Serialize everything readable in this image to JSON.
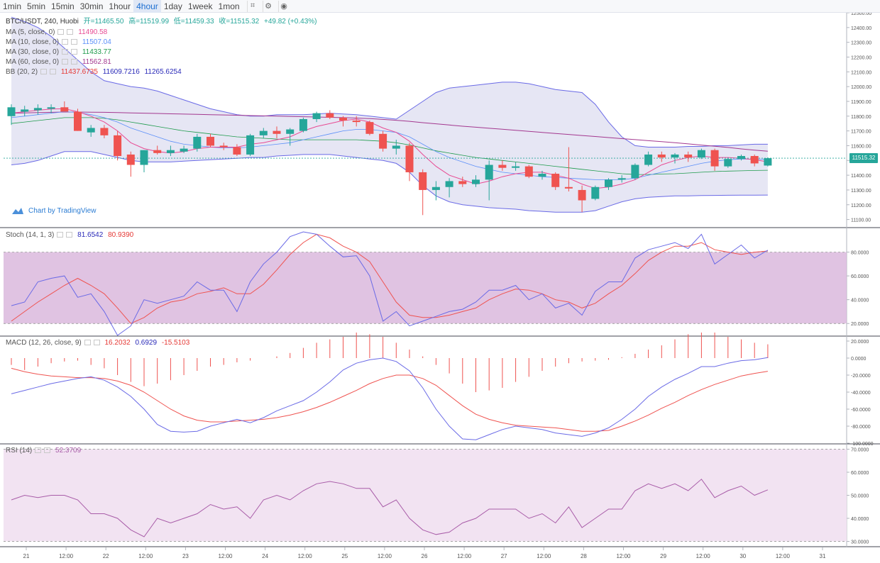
{
  "toolbar": {
    "timeframes": [
      "1min",
      "5min",
      "15min",
      "30min",
      "1hour",
      "4hour",
      "1day",
      "1week",
      "1mon"
    ],
    "active": "4hour"
  },
  "header": {
    "symbol": "BTC/USDT, 240, Huobi",
    "open_label": "开=11465.50",
    "high_label": "高=11519.99",
    "low_label": "低=11459.33",
    "close_label": "收=11515.32",
    "change_label": "+49.82 (+0.43%)"
  },
  "indicators": {
    "ma5": {
      "label": "MA (5, close, 0)",
      "value": "11490.58",
      "color": "#e84a93"
    },
    "ma10": {
      "label": "MA (10, close, 0)",
      "value": "11507.04",
      "color": "#5b8ff9"
    },
    "ma30": {
      "label": "MA (30, close, 0)",
      "value": "11433.77",
      "color": "#1e9b4c"
    },
    "ma60": {
      "label": "MA (60, close, 0)",
      "value": "11562.81",
      "color": "#a3388f"
    },
    "bb": {
      "label": "BB (20, 2)",
      "basis": "11437.6735",
      "upper": "11609.7216",
      "lower": "11265.6254"
    },
    "stoch": {
      "label": "Stoch (14, 1, 3)",
      "k": "81.6542",
      "d": "80.9390"
    },
    "macd": {
      "label": "MACD (12, 26, close, 9)",
      "hist": "16.2032",
      "macd": "0.6929",
      "signal": "-15.5103"
    },
    "rsi": {
      "label": "RSI (14)",
      "value": "52.3709"
    }
  },
  "watermark": "Chart by TradingView",
  "last_price": "11515.32",
  "colors": {
    "up": "#26a69a",
    "down": "#ef5350",
    "bb": "#6a6ae6",
    "bb_fill": "#e3e3f3",
    "stoch_k": "#6a6ae6",
    "stoch_d": "#ef5350",
    "stoch_band": "#dab8dd",
    "rsi_line": "#a85ca8",
    "rsi_band": "#f2e3f2"
  },
  "chart_data": [
    {
      "type": "candlestick",
      "title": "BTC/USDT, 240, Huobi",
      "ylim": [
        11050,
        12500
      ],
      "y_ticks": [
        11100,
        11200,
        11300,
        11400,
        11500,
        11600,
        11700,
        11800,
        11900,
        12000,
        12100,
        12200,
        12300,
        12400,
        12500
      ],
      "x_tick_labels": [
        "21",
        "12:00",
        "22",
        "12:00",
        "23",
        "12:00",
        "24",
        "12:00",
        "25",
        "12:00",
        "26",
        "12:00",
        "27",
        "12:00",
        "28",
        "12:00",
        "29",
        "12:00",
        "30",
        "12:00",
        "31"
      ],
      "ohlc": [
        [
          11800,
          11880,
          11740,
          11860
        ],
        [
          11830,
          11870,
          11800,
          11845
        ],
        [
          11840,
          11880,
          11810,
          11855
        ],
        [
          11850,
          11880,
          11820,
          11860
        ],
        [
          11860,
          11900,
          11830,
          11830
        ],
        [
          11830,
          11850,
          11700,
          11700
        ],
        [
          11690,
          11740,
          11660,
          11720
        ],
        [
          11720,
          11740,
          11650,
          11670
        ],
        [
          11670,
          11700,
          11500,
          11530
        ],
        [
          11540,
          11560,
          11390,
          11470
        ],
        [
          11470,
          11570,
          11420,
          11570
        ],
        [
          11570,
          11600,
          11540,
          11550
        ],
        [
          11550,
          11600,
          11530,
          11570
        ],
        [
          11560,
          11600,
          11550,
          11580
        ],
        [
          11580,
          11680,
          11560,
          11660
        ],
        [
          11660,
          11680,
          11590,
          11600
        ],
        [
          11600,
          11620,
          11570,
          11590
        ],
        [
          11590,
          11610,
          11530,
          11540
        ],
        [
          11540,
          11680,
          11530,
          11670
        ],
        [
          11670,
          11720,
          11650,
          11700
        ],
        [
          11700,
          11730,
          11650,
          11680
        ],
        [
          11680,
          11720,
          11600,
          11710
        ],
        [
          11700,
          11790,
          11690,
          11780
        ],
        [
          11780,
          11830,
          11760,
          11820
        ],
        [
          11820,
          11840,
          11780,
          11790
        ],
        [
          11790,
          11800,
          11730,
          11770
        ],
        [
          11770,
          11800,
          11730,
          11760
        ],
        [
          11760,
          11770,
          11670,
          11680
        ],
        [
          11680,
          11700,
          11560,
          11580
        ],
        [
          11580,
          11640,
          11540,
          11600
        ],
        [
          11600,
          11620,
          11360,
          11420
        ],
        [
          11420,
          11440,
          11130,
          11300
        ],
        [
          11300,
          11360,
          11230,
          11320
        ],
        [
          11320,
          11380,
          11250,
          11360
        ],
        [
          11360,
          11390,
          11320,
          11340
        ],
        [
          11340,
          11400,
          11320,
          11370
        ],
        [
          11370,
          11500,
          11230,
          11470
        ],
        [
          11470,
          11500,
          11430,
          11450
        ],
        [
          11450,
          11490,
          11430,
          11460
        ],
        [
          11460,
          11470,
          11380,
          11390
        ],
        [
          11390,
          11430,
          11370,
          11410
        ],
        [
          11410,
          11420,
          11300,
          11320
        ],
        [
          11320,
          11590,
          11290,
          11310
        ],
        [
          11300,
          11330,
          11150,
          11230
        ],
        [
          11240,
          11330,
          11230,
          11320
        ],
        [
          11320,
          11380,
          11300,
          11370
        ],
        [
          11370,
          11400,
          11350,
          11380
        ],
        [
          11380,
          11480,
          11370,
          11470
        ],
        [
          11470,
          11560,
          11460,
          11540
        ],
        [
          11540,
          11560,
          11490,
          11520
        ],
        [
          11520,
          11550,
          11480,
          11540
        ],
        [
          11540,
          11560,
          11490,
          11520
        ],
        [
          11520,
          11580,
          11510,
          11570
        ],
        [
          11570,
          11580,
          11430,
          11460
        ],
        [
          11460,
          11520,
          11450,
          11510
        ],
        [
          11510,
          11540,
          11500,
          11530
        ],
        [
          11530,
          11540,
          11460,
          11480
        ],
        [
          11465.5,
          11519.99,
          11459.33,
          11515.32
        ]
      ],
      "ma5": [
        11820,
        11830,
        11840,
        11848,
        11850,
        11830,
        11800,
        11760,
        11700,
        11620,
        11580,
        11560,
        11550,
        11560,
        11580,
        11590,
        11590,
        11590,
        11610,
        11620,
        11640,
        11660,
        11700,
        11730,
        11750,
        11770,
        11780,
        11760,
        11720,
        11690,
        11630,
        11540,
        11460,
        11400,
        11370,
        11340,
        11360,
        11390,
        11410,
        11420,
        11420,
        11400,
        11380,
        11340,
        11310,
        11320,
        11340,
        11370,
        11420,
        11470,
        11500,
        11520,
        11530,
        11520,
        11520,
        11515,
        11505,
        11490.58
      ],
      "ma10": [
        11790,
        11800,
        11810,
        11820,
        11830,
        11825,
        11810,
        11790,
        11760,
        11720,
        11690,
        11660,
        11630,
        11610,
        11600,
        11590,
        11585,
        11585,
        11590,
        11600,
        11610,
        11620,
        11640,
        11660,
        11680,
        11700,
        11710,
        11710,
        11700,
        11690,
        11660,
        11610,
        11560,
        11520,
        11490,
        11460,
        11440,
        11420,
        11410,
        11400,
        11390,
        11385,
        11380,
        11375,
        11370,
        11370,
        11370,
        11380,
        11400,
        11420,
        11440,
        11460,
        11480,
        11495,
        11505,
        11510,
        11508,
        11507.04
      ],
      "ma30": [
        11750,
        11760,
        11770,
        11780,
        11790,
        11790,
        11790,
        11785,
        11775,
        11760,
        11745,
        11730,
        11715,
        11700,
        11690,
        11680,
        11670,
        11660,
        11655,
        11650,
        11645,
        11640,
        11640,
        11640,
        11640,
        11640,
        11640,
        11635,
        11630,
        11620,
        11605,
        11585,
        11565,
        11550,
        11535,
        11520,
        11510,
        11500,
        11490,
        11480,
        11470,
        11460,
        11450,
        11440,
        11430,
        11420,
        11410,
        11405,
        11405,
        11408,
        11410,
        11415,
        11420,
        11425,
        11428,
        11430,
        11432,
        11433.77
      ],
      "ma60": [
        11820,
        11822,
        11824,
        11826,
        11828,
        11828,
        11827,
        11826,
        11824,
        11822,
        11820,
        11818,
        11816,
        11814,
        11812,
        11810,
        11808,
        11806,
        11804,
        11802,
        11800,
        11798,
        11796,
        11794,
        11792,
        11790,
        11787,
        11783,
        11778,
        11772,
        11765,
        11756,
        11748,
        11740,
        11732,
        11725,
        11718,
        11711,
        11704,
        11697,
        11690,
        11683,
        11676,
        11669,
        11662,
        11655,
        11648,
        11641,
        11634,
        11627,
        11620,
        11612,
        11604,
        11596,
        11588,
        11578,
        11570,
        11562.81
      ],
      "bb_upper": [
        12470,
        12440,
        12400,
        12340,
        12260,
        12180,
        12100,
        12040,
        12020,
        12000,
        11990,
        11970,
        11940,
        11910,
        11880,
        11850,
        11830,
        11810,
        11800,
        11800,
        11810,
        11810,
        11810,
        11815,
        11820,
        11815,
        11810,
        11800,
        11790,
        11780,
        11840,
        11900,
        11960,
        11990,
        12000,
        12010,
        12020,
        12030,
        12030,
        12020,
        12000,
        11980,
        11970,
        11960,
        11880,
        11760,
        11660,
        11600,
        11590,
        11590,
        11590,
        11595,
        11595,
        11600,
        11600,
        11605,
        11610,
        11609.72
      ],
      "bb_lower": [
        11470,
        11480,
        11500,
        11530,
        11560,
        11560,
        11560,
        11540,
        11520,
        11500,
        11490,
        11490,
        11490,
        11495,
        11500,
        11505,
        11510,
        11515,
        11520,
        11520,
        11530,
        11535,
        11540,
        11540,
        11540,
        11530,
        11520,
        11510,
        11500,
        11480,
        11420,
        11330,
        11260,
        11220,
        11200,
        11190,
        11180,
        11175,
        11170,
        11160,
        11155,
        11150,
        11150,
        11150,
        11160,
        11190,
        11220,
        11240,
        11250,
        11255,
        11260,
        11260,
        11262,
        11263,
        11264,
        11265,
        11265,
        11265.63
      ]
    },
    {
      "type": "line",
      "title": "Stoch (14, 1, 3)",
      "ylim": [
        10,
        100
      ],
      "y_ticks": [
        20,
        40,
        60,
        80
      ],
      "bands": [
        20,
        80
      ],
      "series": [
        {
          "name": "K",
          "values": [
            35,
            38,
            55,
            58,
            60,
            42,
            45,
            30,
            10,
            18,
            40,
            37,
            40,
            43,
            55,
            48,
            48,
            30,
            55,
            70,
            80,
            93,
            97,
            95,
            85,
            76,
            77,
            60,
            22,
            30,
            18,
            22,
            26,
            30,
            32,
            38,
            48,
            48,
            52,
            40,
            45,
            33,
            37,
            27,
            47,
            55,
            55,
            75,
            82,
            85,
            88,
            83,
            95,
            70,
            78,
            86,
            75,
            81.65
          ]
        },
        {
          "name": "D",
          "values": [
            22,
            30,
            38,
            45,
            52,
            58,
            52,
            45,
            33,
            20,
            25,
            33,
            38,
            40,
            45,
            47,
            50,
            45,
            45,
            53,
            65,
            78,
            88,
            95,
            92,
            85,
            80,
            72,
            55,
            38,
            27,
            25,
            25,
            27,
            30,
            33,
            40,
            45,
            49,
            48,
            45,
            40,
            38,
            33,
            37,
            45,
            52,
            62,
            73,
            80,
            85,
            85,
            88,
            82,
            80,
            78,
            80,
            80.94
          ]
        }
      ]
    },
    {
      "type": "bar",
      "title": "MACD (12, 26, close, 9)",
      "ylim": [
        -100,
        25
      ],
      "y_ticks": [
        20,
        0,
        -20,
        -40,
        -60,
        -80,
        -100
      ],
      "histogram": [
        -8,
        -14,
        -10,
        -6,
        -4,
        -3,
        -8,
        -12,
        -20,
        -28,
        -33,
        -30,
        -26,
        -20,
        -15,
        -10,
        -8,
        -5,
        -3,
        0,
        2,
        6,
        12,
        18,
        22,
        25,
        30,
        28,
        25,
        18,
        10,
        2,
        -8,
        -18,
        -30,
        -40,
        -38,
        -35,
        -28,
        -22,
        -15,
        -10,
        -6,
        -4,
        -3,
        -2,
        1,
        5,
        10,
        15,
        22,
        28,
        30,
        30,
        25,
        22,
        18,
        16.2
      ],
      "series": [
        {
          "name": "MACD",
          "values": [
            -42,
            -38,
            -34,
            -30,
            -27,
            -24,
            -22,
            -26,
            -34,
            -45,
            -60,
            -78,
            -86,
            -87,
            -86,
            -80,
            -76,
            -72,
            -76,
            -70,
            -62,
            -56,
            -50,
            -40,
            -28,
            -14,
            -6,
            -2,
            0,
            -4,
            -15,
            -35,
            -60,
            -80,
            -95,
            -96,
            -90,
            -84,
            -80,
            -82,
            -84,
            -88,
            -90,
            -92,
            -88,
            -82,
            -72,
            -60,
            -45,
            -34,
            -25,
            -18,
            -10,
            -10,
            -6,
            -3,
            -2,
            0.69
          ]
        },
        {
          "name": "Signal",
          "values": [
            -12,
            -16,
            -19,
            -21,
            -22,
            -23,
            -23,
            -24,
            -27,
            -32,
            -40,
            -50,
            -60,
            -68,
            -73,
            -75,
            -75,
            -74,
            -73,
            -72,
            -70,
            -67,
            -63,
            -58,
            -52,
            -45,
            -38,
            -30,
            -24,
            -20,
            -20,
            -24,
            -32,
            -44,
            -56,
            -66,
            -72,
            -76,
            -79,
            -80,
            -81,
            -82,
            -84,
            -86,
            -86,
            -85,
            -80,
            -74,
            -67,
            -59,
            -52,
            -44,
            -37,
            -31,
            -26,
            -21,
            -18,
            -15.51
          ]
        }
      ]
    },
    {
      "type": "line",
      "title": "RSI (14)",
      "ylim": [
        28,
        72
      ],
      "y_ticks": [
        30,
        40,
        50,
        60,
        70
      ],
      "bands": [
        30,
        70
      ],
      "series": [
        {
          "name": "RSI",
          "values": [
            48,
            50,
            49,
            50,
            50,
            48,
            42,
            42,
            40,
            35,
            32,
            40,
            38,
            40,
            42,
            46,
            44,
            45,
            40,
            48,
            50,
            48,
            52,
            55,
            56,
            55,
            53,
            53,
            45,
            48,
            40,
            35,
            33,
            34,
            38,
            40,
            44,
            44,
            44,
            40,
            42,
            38,
            45,
            36,
            40,
            44,
            44,
            52,
            55,
            53,
            55,
            52,
            57,
            49,
            52,
            54,
            50,
            52.37
          ]
        }
      ]
    }
  ]
}
